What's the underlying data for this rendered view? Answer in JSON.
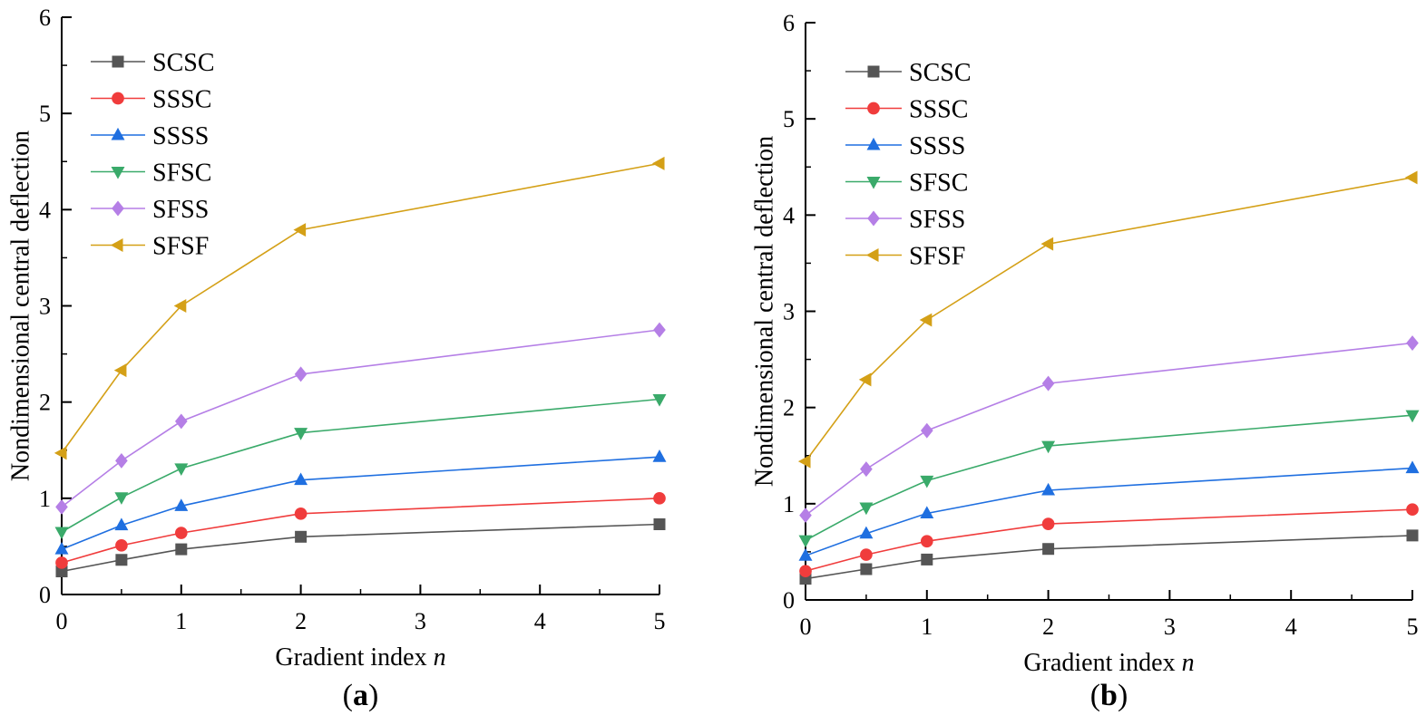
{
  "chart_data": [
    {
      "type": "line",
      "panel_label": "a",
      "xlabel": "Gradient index",
      "xlabel_var": "n",
      "ylabel": "Nondimensional central deflection",
      "xlim": [
        0,
        5
      ],
      "ylim": [
        0,
        6
      ],
      "xticks": [
        "0",
        "1",
        "2",
        "3",
        "4",
        "5"
      ],
      "yticks": [
        "0",
        "1",
        "2",
        "3",
        "4",
        "5",
        "6"
      ],
      "grid": false,
      "legend_position": "top-left",
      "x": [
        0,
        0.5,
        1,
        2,
        5
      ],
      "series": [
        {
          "name": "SCSC",
          "color": "#555555",
          "marker": "square",
          "values": [
            0.24,
            0.36,
            0.47,
            0.6,
            0.73
          ]
        },
        {
          "name": "SSSC",
          "color": "#f03c3c",
          "marker": "circle",
          "values": [
            0.33,
            0.51,
            0.64,
            0.84,
            1.0
          ]
        },
        {
          "name": "SSSS",
          "color": "#1f6fe0",
          "marker": "triangle-up",
          "values": [
            0.47,
            0.72,
            0.92,
            1.19,
            1.43
          ]
        },
        {
          "name": "SFSC",
          "color": "#3aaa6a",
          "marker": "triangle-down",
          "values": [
            0.65,
            1.01,
            1.31,
            1.68,
            2.03
          ]
        },
        {
          "name": "SFSS",
          "color": "#b57fe6",
          "marker": "diamond",
          "values": [
            0.91,
            1.39,
            1.8,
            2.29,
            2.75
          ]
        },
        {
          "name": "SFSF",
          "color": "#d4a017",
          "marker": "triangle-left",
          "values": [
            1.47,
            2.33,
            3.0,
            3.79,
            4.48
          ]
        }
      ]
    },
    {
      "type": "line",
      "panel_label": "b",
      "xlabel": "Gradient index",
      "xlabel_var": "n",
      "ylabel": "Nondimensional central deflection",
      "xlim": [
        0,
        5
      ],
      "ylim": [
        0,
        6
      ],
      "xticks": [
        "0",
        "1",
        "2",
        "3",
        "4",
        "5"
      ],
      "yticks": [
        "0",
        "1",
        "2",
        "3",
        "4",
        "5",
        "6"
      ],
      "grid": false,
      "legend_position": "top-left",
      "x": [
        0,
        0.5,
        1,
        2,
        5
      ],
      "series": [
        {
          "name": "SCSC",
          "color": "#555555",
          "marker": "square",
          "values": [
            0.22,
            0.32,
            0.42,
            0.53,
            0.67
          ]
        },
        {
          "name": "SSSC",
          "color": "#f03c3c",
          "marker": "circle",
          "values": [
            0.3,
            0.47,
            0.61,
            0.79,
            0.94
          ]
        },
        {
          "name": "SSSS",
          "color": "#1f6fe0",
          "marker": "triangle-up",
          "values": [
            0.46,
            0.69,
            0.9,
            1.14,
            1.37
          ]
        },
        {
          "name": "SFSC",
          "color": "#3aaa6a",
          "marker": "triangle-down",
          "values": [
            0.62,
            0.96,
            1.24,
            1.6,
            1.92
          ]
        },
        {
          "name": "SFSS",
          "color": "#b57fe6",
          "marker": "diamond",
          "values": [
            0.88,
            1.36,
            1.76,
            2.25,
            2.67
          ]
        },
        {
          "name": "SFSF",
          "color": "#d4a017",
          "marker": "triangle-left",
          "values": [
            1.44,
            2.29,
            2.91,
            3.7,
            4.39
          ]
        }
      ]
    }
  ]
}
